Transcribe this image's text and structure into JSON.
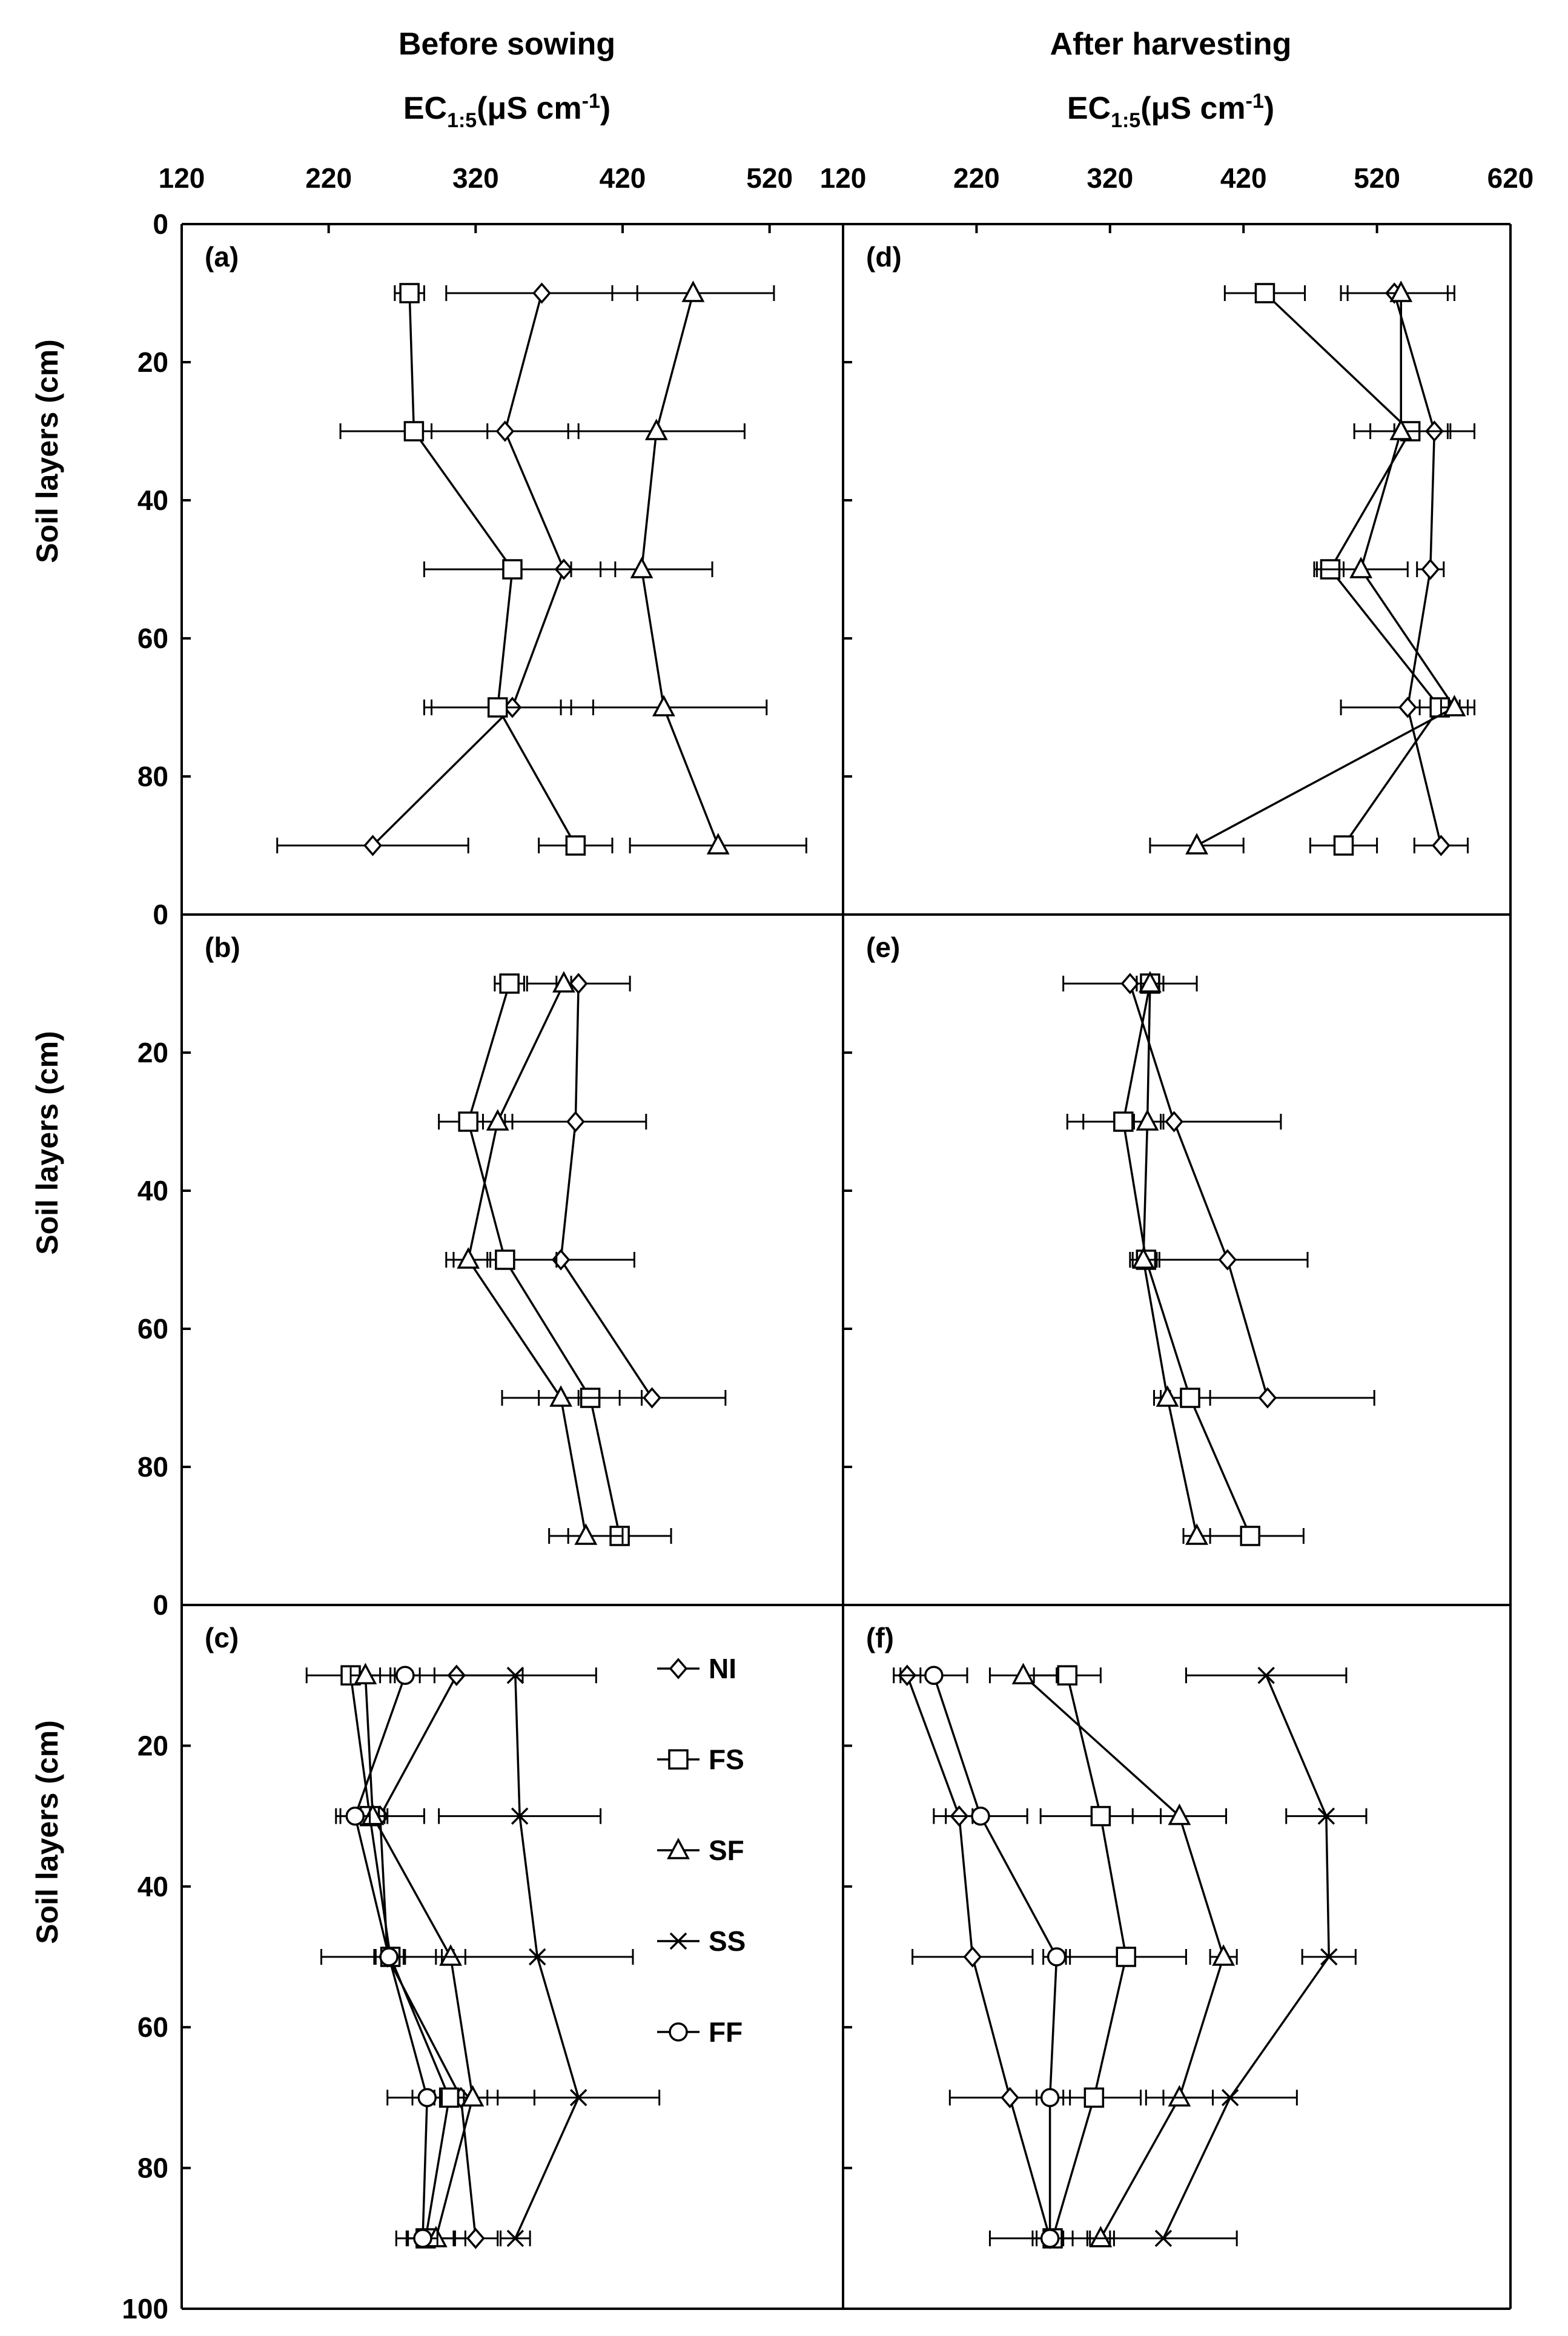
{
  "headers": {
    "left_title": "Before sowing",
    "right_title": "After harvesting",
    "x_axis_main": "EC",
    "x_axis_sub": "1:5",
    "x_axis_units": "(μS cm",
    "x_axis_exp": "-1",
    "x_axis_close": ")"
  },
  "chart_data": {
    "type": "line",
    "orientation": "vertical-profile",
    "xlabel": "EC1:5 (μS cm-1)",
    "ylabel": "Soil layers (cm)",
    "ylim": [
      0,
      100
    ],
    "y_ticks": [
      "0",
      "20",
      "40",
      "60",
      "80",
      "100"
    ],
    "left_x_ticks": [
      "120",
      "220",
      "320",
      "420",
      "520"
    ],
    "right_x_ticks": [
      "120",
      "220",
      "320",
      "420",
      "520",
      "620"
    ],
    "xlim_left": [
      120,
      570
    ],
    "xlim_right": [
      120,
      620
    ],
    "depths": [
      10,
      30,
      50,
      70,
      90
    ],
    "legend": [
      {
        "name": "NI",
        "marker": "diamond"
      },
      {
        "name": "FS",
        "marker": "square"
      },
      {
        "name": "SF",
        "marker": "triangle"
      },
      {
        "name": "SS",
        "marker": "x"
      },
      {
        "name": "FF",
        "marker": "circle"
      }
    ],
    "panels": [
      {
        "id": "a",
        "label": "(a)",
        "column": "left",
        "row": 0,
        "series": [
          {
            "name": "NI",
            "values": [
              365,
              340,
              380,
              345,
              250
            ],
            "errors": [
              65,
              50,
              35,
              55,
              65
            ]
          },
          {
            "name": "FS",
            "values": [
              275,
              278,
              345,
              335,
              388
            ],
            "errors": [
              10,
              50,
              60,
              50,
              25
            ]
          },
          {
            "name": "SF",
            "values": [
              468,
              443,
              433,
              448,
              485
            ],
            "errors": [
              55,
              60,
              48,
              70,
              60
            ]
          }
        ]
      },
      {
        "id": "b",
        "label": "(b)",
        "column": "left",
        "row": 1,
        "series": [
          {
            "name": "NI",
            "values": [
              390,
              388,
              378,
              440,
              null
            ],
            "errors": [
              35,
              48,
              50,
              50,
              null
            ]
          },
          {
            "name": "FS",
            "values": [
              343,
              315,
              340,
              398,
              418
            ],
            "errors": [
              10,
              20,
              35,
              35,
              35
            ]
          },
          {
            "name": "SF",
            "values": [
              380,
              335,
              315,
              378,
              395
            ],
            "errors": [
              5,
              10,
              15,
              40,
              25
            ]
          }
        ]
      },
      {
        "id": "c",
        "label": "(c)",
        "column": "left",
        "row": 2,
        "series": [
          {
            "name": "NI",
            "values": [
              307,
              255,
              260,
              310,
              320
            ],
            "errors": [
              45,
              30,
              45,
              50,
              15
            ]
          },
          {
            "name": "FS",
            "values": [
              235,
              248,
              262,
              302,
              286
            ],
            "errors": [
              30,
              10,
              10,
              10,
              20
            ]
          },
          {
            "name": "SF",
            "values": [
              245,
              250,
              303,
              318,
              293
            ],
            "errors": [
              10,
              10,
              10,
              10,
              20
            ]
          },
          {
            "name": "SS",
            "values": [
              347,
              350,
              362,
              390,
              347
            ],
            "errors": [
              55,
              55,
              65,
              55,
              10
            ]
          },
          {
            "name": "FF",
            "values": [
              272,
              238,
              261,
              287,
              284
            ],
            "errors": [
              10,
              10,
              10,
              10,
              10
            ]
          }
        ]
      },
      {
        "id": "d",
        "label": "(d)",
        "column": "right",
        "row": 0,
        "series": [
          {
            "name": "NI",
            "values": [
              533,
              563,
              560,
              543,
              568
            ],
            "errors": [
              40,
              30,
              10,
              50,
              20
            ]
          },
          {
            "name": "FS",
            "values": [
              436,
              545,
              485,
              567,
              495
            ],
            "errors": [
              30,
              30,
              10,
              15,
              25
            ]
          },
          {
            "name": "SF",
            "values": [
              538,
              538,
              508,
              578,
              385
            ],
            "errors": [
              40,
              35,
              35,
              10,
              35
            ]
          }
        ]
      },
      {
        "id": "e",
        "label": "(e)",
        "column": "right",
        "row": 1,
        "series": [
          {
            "name": "NI",
            "values": [
              335,
              368,
              408,
              438,
              null
            ],
            "errors": [
              50,
              80,
              60,
              80,
              null
            ]
          },
          {
            "name": "FS",
            "values": [
              350,
              330,
              347,
              380,
              425
            ],
            "errors": [
              10,
              30,
              10,
              15,
              40
            ]
          },
          {
            "name": "SF",
            "values": [
              350,
              348,
              345,
              363,
              385
            ],
            "errors": [
              10,
              10,
              10,
              10,
              10
            ]
          }
        ]
      },
      {
        "id": "f",
        "label": "(f)",
        "column": "right",
        "row": 2,
        "series": [
          {
            "name": "NI",
            "values": [
              168,
              207,
              217,
              245,
              275
            ],
            "errors": [
              10,
              10,
              45,
              45,
              45
            ]
          },
          {
            "name": "FS",
            "values": [
              288,
              313,
              332,
              308,
              277
            ],
            "errors": [
              25,
              45,
              45,
              35,
              15
            ]
          },
          {
            "name": "SF",
            "values": [
              255,
              372,
              405,
              372,
              313
            ],
            "errors": [
              25,
              35,
              10,
              25,
              10
            ]
          },
          {
            "name": "SS",
            "values": [
              437,
              482,
              484,
              410,
              360
            ],
            "errors": [
              60,
              30,
              20,
              50,
              55
            ]
          },
          {
            "name": "FF",
            "values": [
              188,
              223,
              280,
              275,
              275
            ],
            "errors": [
              25,
              35,
              10,
              10,
              10
            ]
          }
        ]
      }
    ]
  }
}
